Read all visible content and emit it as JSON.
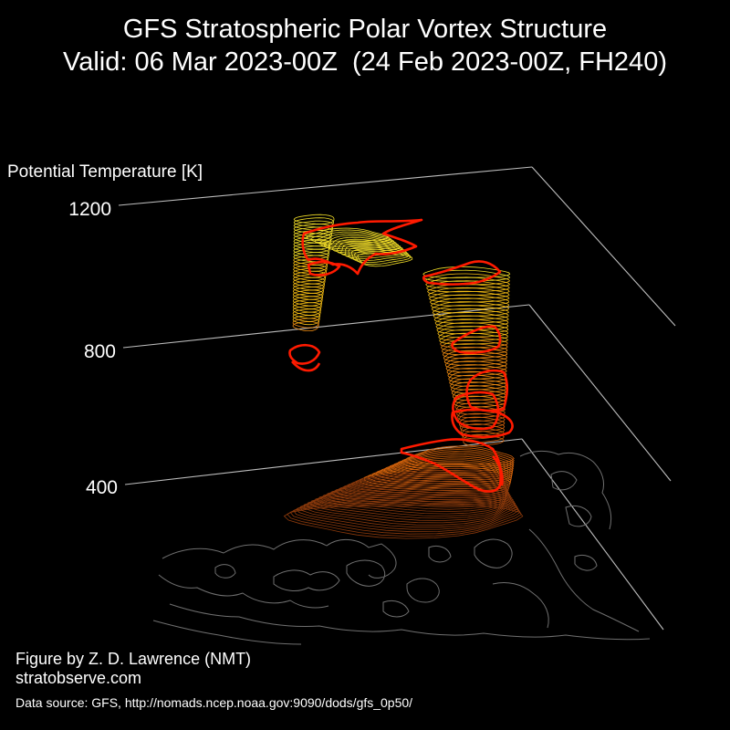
{
  "title": {
    "line1": "GFS Stratospheric Polar Vortex Structure",
    "line2": "Valid: 06 Mar 2023-00Z  (24 Feb 2023-00Z, FH240)"
  },
  "chart_data": {
    "type": "3d-isosurface",
    "zlabel": "Potential Temperature [K]",
    "z_ticks": [
      400,
      800,
      1200
    ],
    "z_range": [
      350,
      1250
    ],
    "colormap": [
      "#8c3a0c",
      "#d2620c",
      "#f08c10",
      "#f6be14",
      "#f0dc28"
    ],
    "edge_color": "#ff1a00",
    "vortex_segments": [
      {
        "name": "upper-left",
        "theta_range": [
          880,
          1200
        ]
      },
      {
        "name": "upper-right",
        "theta_range": [
          580,
          1090
        ]
      },
      {
        "name": "lower-trunk",
        "theta_range": [
          360,
          620
        ]
      }
    ]
  },
  "credits": {
    "line1": "Figure by Z. D. Lawrence (NMT)",
    "line2": "stratobserve.com",
    "line3": "Data source: GFS, http://nomads.ncep.noaa.gov:9090/dods/gfs_0p50/"
  }
}
